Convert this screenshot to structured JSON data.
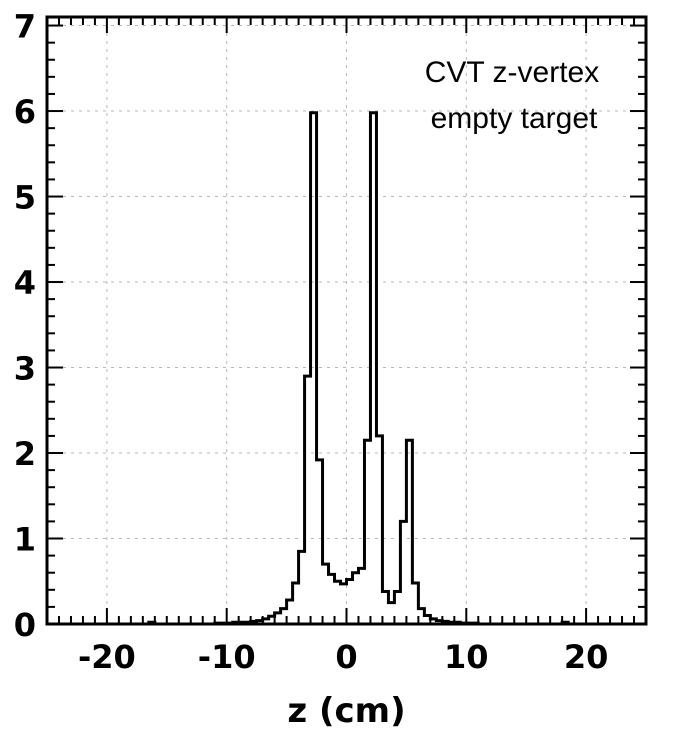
{
  "chart_data": {
    "type": "histogram",
    "title": "",
    "xlabel": "z (cm)",
    "ylabel": "",
    "xlim": [
      -25,
      25
    ],
    "ylim": [
      0,
      7.1
    ],
    "xticks": [
      -20,
      -10,
      0,
      10,
      20
    ],
    "xtick_labels": [
      "-20",
      "-10",
      "0",
      "10",
      "20"
    ],
    "yticks": [
      0,
      1,
      2,
      3,
      4,
      5,
      6,
      7
    ],
    "ytick_labels": [
      "0",
      "1",
      "2",
      "3",
      "4",
      "5",
      "6",
      "7"
    ],
    "grid": true,
    "annotation_lines": [
      "CVT z-vertex",
      "empty target"
    ],
    "bin_edges": [
      -25,
      -24.5,
      -24,
      -23.5,
      -23,
      -22.5,
      -22,
      -21.5,
      -21,
      -20.5,
      -20,
      -19.5,
      -19,
      -18.5,
      -18,
      -17.5,
      -17,
      -16.5,
      -16,
      -15.5,
      -15,
      -14.5,
      -14,
      -13.5,
      -13,
      -12.5,
      -12,
      -11.5,
      -11,
      -10.5,
      -10,
      -9.5,
      -9,
      -8.5,
      -8,
      -7.5,
      -7,
      -6.5,
      -6,
      -5.5,
      -5,
      -4.5,
      -4,
      -3.5,
      -3,
      -2.5,
      -2,
      -1.5,
      -1,
      -0.5,
      0,
      0.5,
      1,
      1.5,
      2,
      2.5,
      3,
      3.5,
      4,
      4.5,
      5,
      5.5,
      6,
      6.5,
      7,
      7.5,
      8,
      8.5,
      9,
      9.5,
      10,
      10.5,
      11,
      11.5,
      12,
      12.5,
      13,
      13.5,
      14,
      14.5,
      15,
      15.5,
      16,
      16.5,
      17,
      17.5,
      18,
      18.5,
      19,
      19.5,
      20,
      20.5,
      21,
      21.5,
      22,
      22.5,
      23,
      23.5,
      24,
      24.5,
      25
    ],
    "values": [
      0,
      0,
      0,
      0,
      0,
      0,
      0,
      0,
      0,
      0,
      0,
      0,
      0,
      0,
      0,
      0,
      0,
      0.02,
      0,
      0,
      0,
      0,
      0,
      0,
      0,
      0,
      0,
      0,
      0.01,
      0.01,
      0.01,
      0.02,
      0.02,
      0.02,
      0.03,
      0.04,
      0.06,
      0.09,
      0.13,
      0.18,
      0.28,
      0.48,
      0.85,
      2.9,
      5.98,
      1.92,
      0.7,
      0.58,
      0.5,
      0.47,
      0.52,
      0.6,
      0.65,
      2.15,
      5.98,
      2.2,
      0.38,
      0.25,
      0.38,
      1.2,
      2.15,
      0.48,
      0.18,
      0.1,
      0.06,
      0.04,
      0.03,
      0.02,
      0.02,
      0.01,
      0.01,
      0.01,
      0,
      0,
      0,
      0,
      0,
      0,
      0,
      0,
      0,
      0,
      0,
      0,
      0,
      0,
      0.02,
      0,
      0,
      0,
      0,
      0,
      0,
      0,
      0,
      0,
      0,
      0,
      0,
      0
    ]
  }
}
